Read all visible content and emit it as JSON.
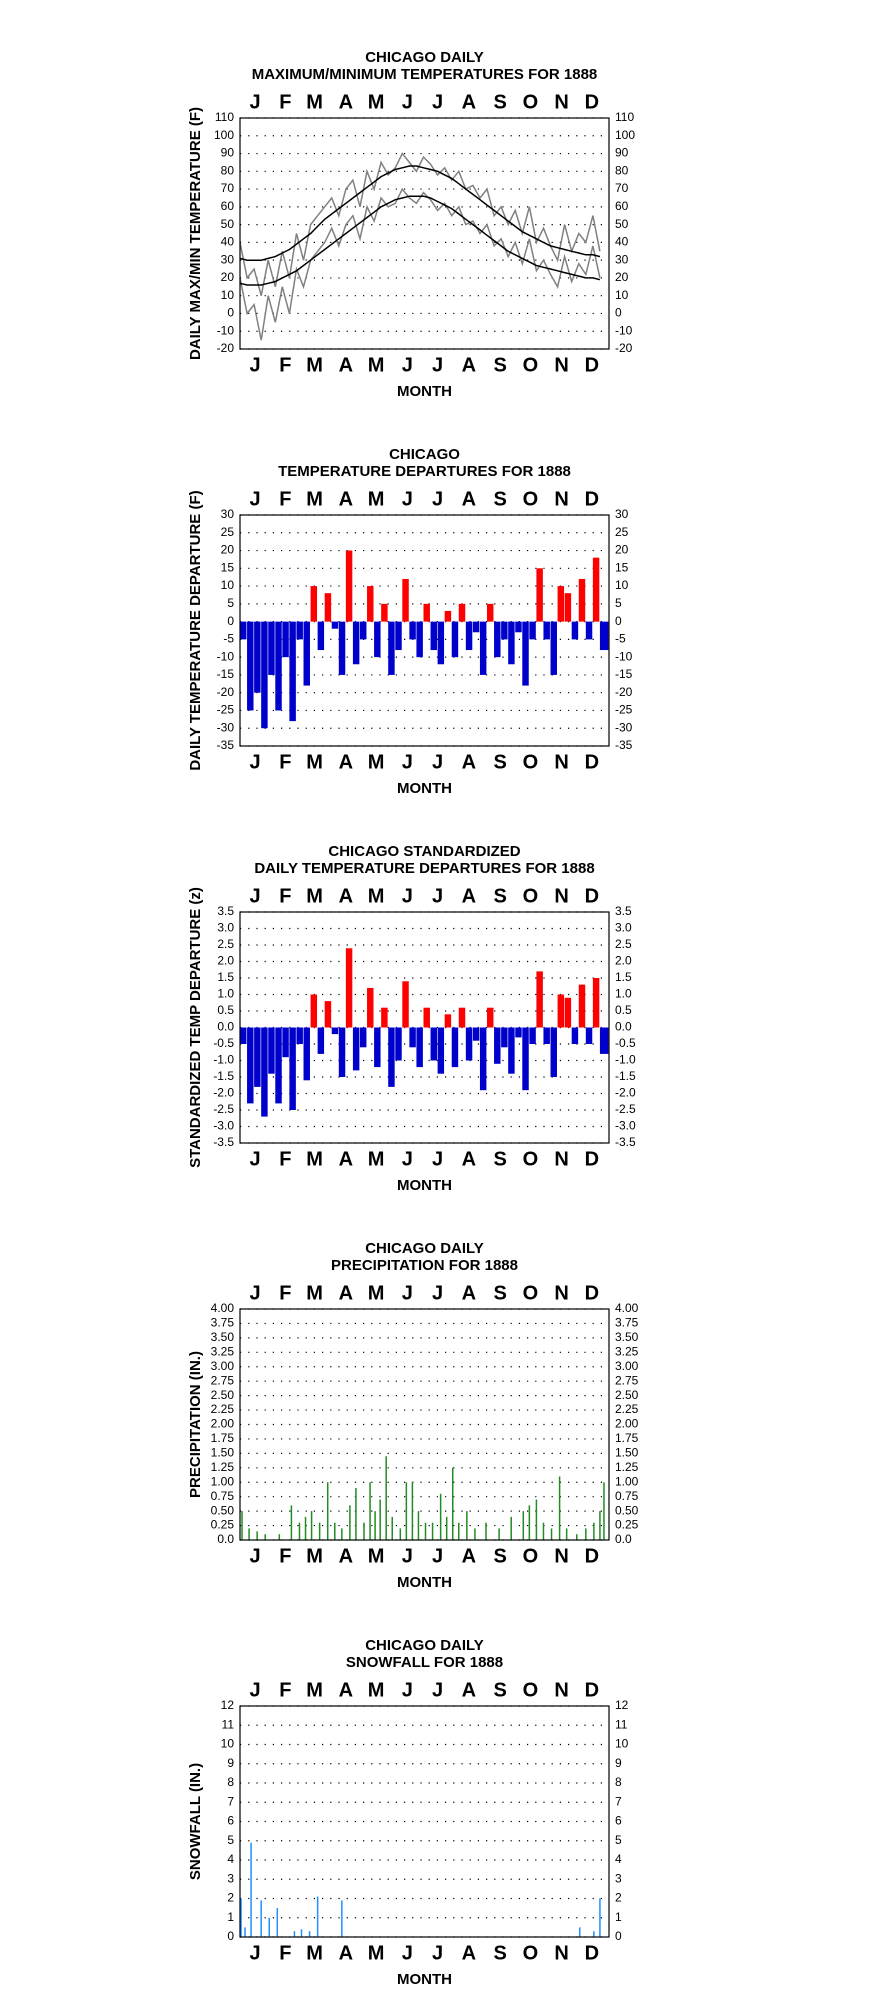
{
  "chart_data": [
    {
      "type": "line",
      "title": "CHICAGO DAILY",
      "subtitle": "MAXIMUM/MINIMUM TEMPERATURES FOR 1888",
      "x_label": "MONTH",
      "y_label": "DAILY MAX/MIN TEMPERATURE (F)",
      "xlim": [
        1,
        367
      ],
      "xticks": [
        {
          "value": 16,
          "label": "J"
        },
        {
          "value": 46,
          "label": "F"
        },
        {
          "value": 75,
          "label": "M"
        },
        {
          "value": 106,
          "label": "A"
        },
        {
          "value": 136,
          "label": "M"
        },
        {
          "value": 167,
          "label": "J"
        },
        {
          "value": 197,
          "label": "J"
        },
        {
          "value": 228,
          "label": "A"
        },
        {
          "value": 259,
          "label": "S"
        },
        {
          "value": 289,
          "label": "O"
        },
        {
          "value": 320,
          "label": "N"
        },
        {
          "value": 350,
          "label": "D"
        }
      ],
      "ylim": [
        -20,
        110
      ],
      "yticks": [
        -20,
        -10,
        0,
        10,
        20,
        30,
        40,
        50,
        60,
        70,
        80,
        90,
        100,
        110
      ],
      "grid": true,
      "x": [
        1,
        8,
        15,
        22,
        29,
        36,
        43,
        50,
        57,
        64,
        71,
        78,
        85,
        92,
        99,
        106,
        113,
        120,
        127,
        134,
        141,
        148,
        155,
        162,
        169,
        176,
        183,
        190,
        197,
        204,
        211,
        218,
        225,
        232,
        239,
        246,
        253,
        260,
        267,
        274,
        281,
        288,
        295,
        302,
        309,
        316,
        323,
        330,
        337,
        344,
        351,
        358
      ],
      "series": [
        {
          "color": "#808080",
          "values": [
            40,
            20,
            25,
            10,
            30,
            15,
            35,
            20,
            45,
            30,
            50,
            55,
            60,
            65,
            55,
            70,
            75,
            60,
            80,
            70,
            85,
            78,
            82,
            90,
            85,
            80,
            88,
            84,
            78,
            82,
            75,
            80,
            70,
            72,
            65,
            70,
            55,
            60,
            50,
            58,
            45,
            60,
            40,
            48,
            38,
            30,
            50,
            35,
            45,
            40,
            55,
            35
          ]
        },
        {
          "color": "#808080",
          "values": [
            20,
            0,
            5,
            -15,
            10,
            -5,
            15,
            0,
            25,
            15,
            30,
            35,
            40,
            48,
            38,
            50,
            55,
            42,
            60,
            52,
            65,
            60,
            62,
            70,
            65,
            62,
            68,
            64,
            58,
            62,
            55,
            60,
            50,
            52,
            45,
            50,
            38,
            42,
            32,
            40,
            28,
            42,
            24,
            30,
            22,
            15,
            32,
            18,
            28,
            22,
            38,
            20
          ]
        },
        {
          "color": "#000000",
          "values": [
            31,
            30,
            30,
            30,
            31,
            32,
            34,
            36,
            39,
            42,
            45,
            49,
            53,
            56,
            59,
            62,
            65,
            68,
            71,
            74,
            77,
            79,
            81,
            82,
            83,
            83,
            82,
            81,
            80,
            78,
            76,
            73,
            70,
            67,
            64,
            61,
            58,
            55,
            52,
            49,
            46,
            44,
            42,
            40,
            38,
            37,
            36,
            35,
            34,
            33,
            33,
            32
          ]
        },
        {
          "color": "#000000",
          "values": [
            17,
            16,
            16,
            16,
            17,
            18,
            20,
            22,
            24,
            27,
            30,
            33,
            36,
            39,
            42,
            45,
            48,
            51,
            54,
            57,
            60,
            62,
            64,
            65,
            66,
            66,
            66,
            65,
            63,
            61,
            59,
            56,
            53,
            50,
            47,
            44,
            41,
            38,
            35,
            33,
            31,
            29,
            27,
            26,
            25,
            24,
            23,
            22,
            21,
            20,
            20,
            19
          ]
        }
      ]
    },
    {
      "type": "bar",
      "title": "CHICAGO",
      "subtitle": "TEMPERATURE DEPARTURES FOR 1888",
      "x_label": "MONTH",
      "y_label": "DAILY TEMPERATURE DEPARTURE (F)",
      "xlim": [
        1,
        367
      ],
      "xticks": [
        {
          "value": 16,
          "label": "J"
        },
        {
          "value": 46,
          "label": "F"
        },
        {
          "value": 75,
          "label": "M"
        },
        {
          "value": 106,
          "label": "A"
        },
        {
          "value": 136,
          "label": "M"
        },
        {
          "value": 167,
          "label": "J"
        },
        {
          "value": 197,
          "label": "J"
        },
        {
          "value": 228,
          "label": "A"
        },
        {
          "value": 259,
          "label": "S"
        },
        {
          "value": 289,
          "label": "O"
        },
        {
          "value": 320,
          "label": "N"
        },
        {
          "value": 350,
          "label": "D"
        }
      ],
      "ylim": [
        -35,
        30
      ],
      "yticks": [
        -35,
        -30,
        -25,
        -20,
        -15,
        -10,
        -5,
        0,
        5,
        10,
        15,
        20,
        25,
        30
      ],
      "grid": true,
      "pos_color": "#ff0000",
      "neg_color": "#0000cc",
      "x": [
        1,
        8,
        15,
        22,
        29,
        36,
        43,
        50,
        57,
        64,
        71,
        78,
        85,
        92,
        99,
        106,
        113,
        120,
        127,
        134,
        141,
        148,
        155,
        162,
        169,
        176,
        183,
        190,
        197,
        204,
        211,
        218,
        225,
        232,
        239,
        246,
        253,
        260,
        267,
        274,
        281,
        288,
        295,
        302,
        309,
        316,
        323,
        330,
        337,
        344,
        351,
        358
      ],
      "values": [
        -5,
        -25,
        -20,
        -30,
        -15,
        -25,
        -10,
        -28,
        -5,
        -18,
        10,
        -8,
        8,
        -2,
        -15,
        20,
        -12,
        -5,
        10,
        -10,
        5,
        -15,
        -8,
        12,
        -5,
        -10,
        5,
        -8,
        -12,
        3,
        -10,
        5,
        -8,
        -3,
        -15,
        5,
        -10,
        -5,
        -12,
        -3,
        -18,
        -5,
        15,
        -5,
        -15,
        10,
        8,
        -5,
        12,
        -5,
        18,
        -8
      ]
    },
    {
      "type": "bar",
      "title": "CHICAGO STANDARDIZED",
      "subtitle": "DAILY TEMPERATURE DEPARTURES FOR 1888",
      "x_label": "MONTH",
      "y_label": "STANDARDIZED TEMP DEPARTURE (z)",
      "xlim": [
        1,
        367
      ],
      "xticks": [
        {
          "value": 16,
          "label": "J"
        },
        {
          "value": 46,
          "label": "F"
        },
        {
          "value": 75,
          "label": "M"
        },
        {
          "value": 106,
          "label": "A"
        },
        {
          "value": 136,
          "label": "M"
        },
        {
          "value": 167,
          "label": "J"
        },
        {
          "value": 197,
          "label": "J"
        },
        {
          "value": 228,
          "label": "A"
        },
        {
          "value": 259,
          "label": "S"
        },
        {
          "value": 289,
          "label": "O"
        },
        {
          "value": 320,
          "label": "N"
        },
        {
          "value": 350,
          "label": "D"
        }
      ],
      "ylim": [
        -3.5,
        3.5
      ],
      "yticks": [
        -3.5,
        {
          "value": -3,
          "label": "-3.0"
        },
        -2.5,
        {
          "value": -2,
          "label": "-2.0"
        },
        -1.5,
        {
          "value": -1,
          "label": "-1.0"
        },
        -0.5,
        {
          "value": 0,
          "label": "0.0"
        },
        0.5,
        {
          "value": 1,
          "label": "1.0"
        },
        1.5,
        {
          "value": 2,
          "label": "2.0"
        },
        2.5,
        {
          "value": 3,
          "label": "3.0"
        },
        3.5
      ],
      "grid": true,
      "pos_color": "#ff0000",
      "neg_color": "#0000cc",
      "x": [
        1,
        8,
        15,
        22,
        29,
        36,
        43,
        50,
        57,
        64,
        71,
        78,
        85,
        92,
        99,
        106,
        113,
        120,
        127,
        134,
        141,
        148,
        155,
        162,
        169,
        176,
        183,
        190,
        197,
        204,
        211,
        218,
        225,
        232,
        239,
        246,
        253,
        260,
        267,
        274,
        281,
        288,
        295,
        302,
        309,
        316,
        323,
        330,
        337,
        344,
        351,
        358
      ],
      "values": [
        -0.5,
        -2.3,
        -1.8,
        -2.7,
        -1.4,
        -2.3,
        -0.9,
        -2.5,
        -0.5,
        -1.6,
        1.0,
        -0.8,
        0.8,
        -0.2,
        -1.5,
        2.4,
        -1.3,
        -0.6,
        1.2,
        -1.2,
        0.6,
        -1.8,
        -1.0,
        1.4,
        -0.6,
        -1.2,
        0.6,
        -1.0,
        -1.4,
        0.4,
        -1.2,
        0.6,
        -1.0,
        -0.4,
        -1.9,
        0.6,
        -1.1,
        -0.6,
        -1.4,
        -0.3,
        -1.9,
        -0.5,
        1.7,
        -0.5,
        -1.5,
        1.0,
        0.9,
        -0.5,
        1.3,
        -0.5,
        1.5,
        -0.8
      ]
    },
    {
      "type": "stem",
      "title": "CHICAGO DAILY",
      "subtitle": "PRECIPITATION FOR 1888",
      "x_label": "MONTH",
      "y_label": "PRECIPITATION (IN.)",
      "xlim": [
        1,
        367
      ],
      "xticks": [
        {
          "value": 16,
          "label": "J"
        },
        {
          "value": 46,
          "label": "F"
        },
        {
          "value": 75,
          "label": "M"
        },
        {
          "value": 106,
          "label": "A"
        },
        {
          "value": 136,
          "label": "M"
        },
        {
          "value": 167,
          "label": "J"
        },
        {
          "value": 197,
          "label": "J"
        },
        {
          "value": 228,
          "label": "A"
        },
        {
          "value": 259,
          "label": "S"
        },
        {
          "value": 289,
          "label": "O"
        },
        {
          "value": 320,
          "label": "N"
        },
        {
          "value": 350,
          "label": "D"
        }
      ],
      "ylim": [
        0,
        4
      ],
      "yticks": [
        {
          "value": 0,
          "label": "0.0"
        },
        {
          "value": 0.25,
          "label": "0.25"
        },
        {
          "value": 0.5,
          "label": "0.50"
        },
        {
          "value": 0.75,
          "label": "0.75"
        },
        {
          "value": 1,
          "label": "1.00"
        },
        {
          "value": 1.25,
          "label": "1.25"
        },
        {
          "value": 1.5,
          "label": "1.50"
        },
        {
          "value": 1.75,
          "label": "1.75"
        },
        {
          "value": 2,
          "label": "2.00"
        },
        {
          "value": 2.25,
          "label": "2.25"
        },
        {
          "value": 2.5,
          "label": "2.50"
        },
        {
          "value": 2.75,
          "label": "2.75"
        },
        {
          "value": 3,
          "label": "3.00"
        },
        {
          "value": 3.25,
          "label": "3.25"
        },
        {
          "value": 3.5,
          "label": "3.50"
        },
        {
          "value": 3.75,
          "label": "3.75"
        },
        {
          "value": 4,
          "label": "4.00"
        }
      ],
      "grid": true,
      "color": "#228b22",
      "x": [
        3,
        10,
        18,
        26,
        40,
        52,
        60,
        66,
        72,
        80,
        88,
        95,
        102,
        110,
        116,
        124,
        130,
        135,
        140,
        146,
        152,
        160,
        166,
        172,
        178,
        185,
        192,
        200,
        206,
        212,
        218,
        226,
        234,
        245,
        258,
        270,
        282,
        288,
        295,
        302,
        310,
        318,
        325,
        335,
        344,
        352,
        358,
        362
      ],
      "values": [
        0.5,
        0.2,
        0.15,
        0.1,
        0.1,
        0.6,
        0.3,
        0.4,
        0.5,
        0.3,
        1.0,
        0.3,
        0.2,
        0.6,
        0.9,
        0.3,
        1.0,
        0.5,
        0.7,
        1.45,
        0.4,
        0.2,
        1.0,
        1.0,
        0.5,
        0.3,
        0.3,
        0.8,
        0.4,
        1.25,
        0.3,
        0.5,
        0.2,
        0.3,
        0.2,
        0.4,
        0.5,
        0.6,
        0.7,
        0.3,
        0.2,
        1.1,
        0.2,
        0.1,
        0.2,
        0.3,
        0.5,
        1.0
      ]
    },
    {
      "type": "stem",
      "title": "CHICAGO DAILY",
      "subtitle": "SNOWFALL FOR 1888",
      "x_label": "MONTH",
      "y_label": "SNOWFALL (IN.)",
      "xlim": [
        1,
        367
      ],
      "xticks": [
        {
          "value": 16,
          "label": "J"
        },
        {
          "value": 46,
          "label": "F"
        },
        {
          "value": 75,
          "label": "M"
        },
        {
          "value": 106,
          "label": "A"
        },
        {
          "value": 136,
          "label": "M"
        },
        {
          "value": 167,
          "label": "J"
        },
        {
          "value": 197,
          "label": "J"
        },
        {
          "value": 228,
          "label": "A"
        },
        {
          "value": 259,
          "label": "S"
        },
        {
          "value": 289,
          "label": "O"
        },
        {
          "value": 320,
          "label": "N"
        },
        {
          "value": 350,
          "label": "D"
        }
      ],
      "ylim": [
        0,
        12
      ],
      "yticks": [
        0,
        1,
        2,
        3,
        4,
        5,
        6,
        7,
        8,
        9,
        10,
        11,
        12
      ],
      "grid": true,
      "color": "#1e90ff",
      "x": [
        2,
        6,
        12,
        22,
        30,
        38,
        55,
        62,
        70,
        78,
        102,
        338,
        352,
        358
      ],
      "values": [
        2.0,
        0.5,
        4.9,
        1.9,
        1.0,
        1.5,
        0.3,
        0.4,
        0.3,
        2.1,
        1.9,
        0.5,
        0.3,
        2.0
      ]
    }
  ]
}
